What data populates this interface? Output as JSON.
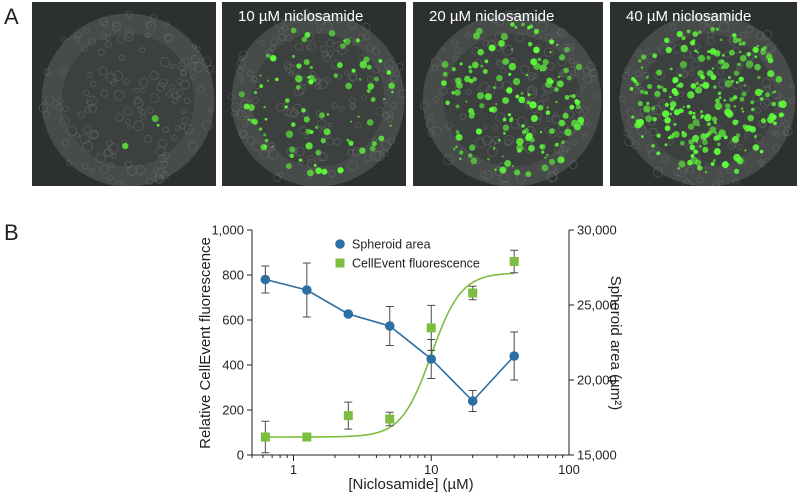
{
  "panel_labels": {
    "a": "A",
    "b": "B"
  },
  "micrographs": [
    {
      "label": ""
    },
    {
      "label": "10 µM niclosamide"
    },
    {
      "label": "20 µM niclosamide"
    },
    {
      "label": "40 µM niclosamide"
    }
  ],
  "colors": {
    "spheroid": "#2b6fa3",
    "cellevent": "#7dbd3f",
    "fluor_green": "#5fff3a",
    "micro_bg": "#2c302e"
  },
  "chart_data": {
    "type": "scatter",
    "xlabel": "[Niclosamide] (µM)",
    "x_scale": "log",
    "xlim": [
      0.5,
      100
    ],
    "x_ticks": [
      1,
      10,
      100
    ],
    "x_tick_labels": [
      "1",
      "10",
      "100"
    ],
    "ylabel_left": "Relative CellEvent fluorescence",
    "ylim_left": [
      0,
      1000
    ],
    "y_ticks_left": [
      0,
      200,
      400,
      600,
      800,
      1000
    ],
    "y_tick_labels_left": [
      "0",
      "200",
      "400",
      "600",
      "800",
      "1,000"
    ],
    "ylabel_right": "Spheroid area (µm²)",
    "ylim_right": [
      15000,
      30000
    ],
    "y_ticks_right": [
      15000,
      20000,
      25000,
      30000
    ],
    "y_tick_labels_right": [
      "15,000",
      "20,000",
      "25,000",
      "30,000"
    ],
    "legend_position": "top-center",
    "series": [
      {
        "name": "Spheroid area",
        "axis": "right",
        "marker": "circle",
        "connect": "line",
        "x": [
          0.625,
          1.25,
          2.5,
          5,
          10,
          20,
          40
        ],
        "y": [
          26700,
          26000,
          24400,
          23600,
          21400,
          18600,
          21600
        ],
        "error": [
          900,
          1800,
          0,
          1300,
          1300,
          700,
          1600
        ]
      },
      {
        "name": "CellEvent fluorescence",
        "axis": "left",
        "marker": "square",
        "connect": "sigmoid-fit",
        "x": [
          0.625,
          1.25,
          2.5,
          5,
          10,
          20,
          40
        ],
        "y": [
          80,
          80,
          175,
          160,
          565,
          720,
          860
        ],
        "error": [
          70,
          0,
          60,
          30,
          100,
          30,
          50
        ],
        "fit": {
          "bottom": 80,
          "top": 810,
          "ec50": 10,
          "hill": 4
        }
      }
    ]
  }
}
